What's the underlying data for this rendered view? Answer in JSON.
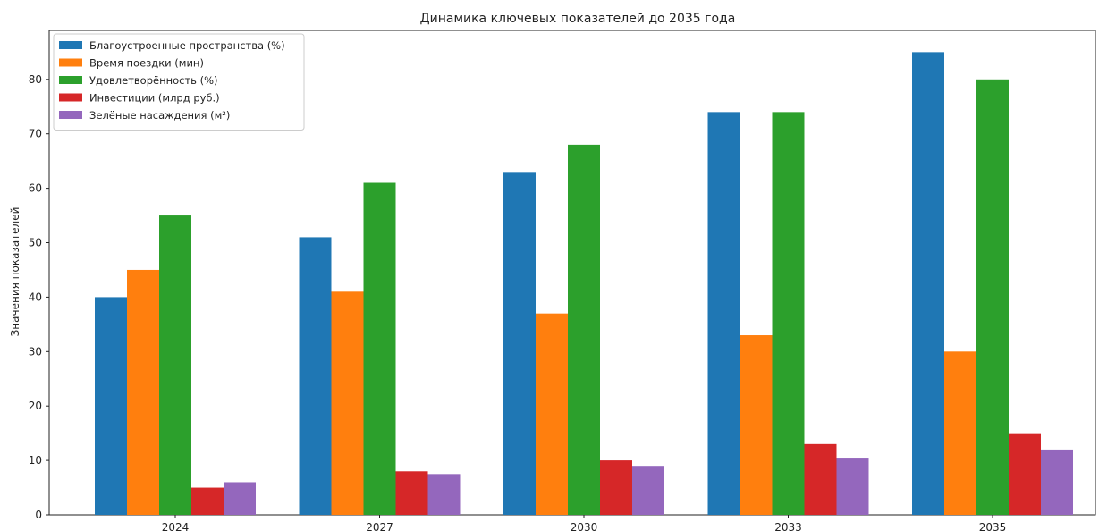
{
  "chart_data": {
    "type": "bar",
    "title": "Динамика ключевых показателей до 2035 года",
    "xlabel": "",
    "ylabel": "Значения показателей",
    "categories": [
      "2024",
      "2027",
      "2030",
      "2033",
      "2035"
    ],
    "ylim": [
      0,
      89
    ],
    "yticks": [
      0,
      10,
      20,
      30,
      40,
      50,
      60,
      70,
      80
    ],
    "grid": false,
    "legend_position": "top-left",
    "series": [
      {
        "name": "Благоустроенные пространства (%)",
        "color": "#1f77b4",
        "values": [
          40,
          51,
          63,
          74,
          85
        ]
      },
      {
        "name": "Время поездки (мин)",
        "color": "#ff7f0e",
        "values": [
          45,
          41,
          37,
          33,
          30
        ]
      },
      {
        "name": "Удовлетворённость (%)",
        "color": "#2ca02c",
        "values": [
          55,
          61,
          68,
          74,
          80
        ]
      },
      {
        "name": "Инвестиции (млрд руб.)",
        "color": "#d62728",
        "values": [
          5,
          8,
          10,
          13,
          15
        ]
      },
      {
        "name": "Зелёные насаждения (м²)",
        "color": "#9467bd",
        "values": [
          6,
          7.5,
          9,
          10.5,
          12
        ]
      }
    ]
  }
}
